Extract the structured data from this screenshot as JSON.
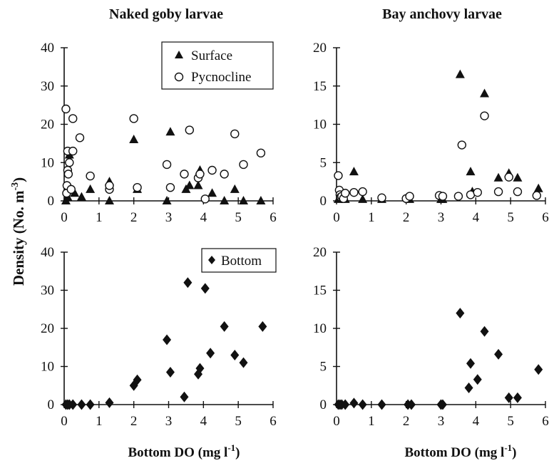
{
  "figure": {
    "ylabel_main": "Density (No. m",
    "ylabel_sup": "-3",
    "ylabel_close": ")"
  },
  "chart_data": [
    {
      "type": "scatter",
      "title": "Naked goby larvae",
      "xlabel": "",
      "xlim": [
        0,
        6
      ],
      "ylim": [
        0,
        40
      ],
      "xticks": [
        "0",
        "1",
        "2",
        "3",
        "4",
        "5",
        "6"
      ],
      "yticks": [
        "0",
        "10",
        "20",
        "30",
        "40"
      ],
      "legend": "top-right",
      "series": [
        {
          "name": "Surface",
          "marker": "triangle",
          "x": [
            0.05,
            0.1,
            0.15,
            0.2,
            0.3,
            0.5,
            0.75,
            1.3,
            1.3,
            2.0,
            2.1,
            2.95,
            3.05,
            3.5,
            3.6,
            3.85,
            3.9,
            4.25,
            4.6,
            4.9,
            5.15,
            5.65
          ],
          "y": [
            0,
            1,
            12,
            3,
            2,
            1,
            3,
            5,
            0,
            16,
            3,
            0,
            18,
            3,
            4,
            4,
            8,
            2,
            0,
            3,
            0,
            0
          ]
        },
        {
          "name": "Pycnocline",
          "marker": "circle",
          "x": [
            0.05,
            0.07,
            0.08,
            0.1,
            0.1,
            0.12,
            0.15,
            0.2,
            0.25,
            0.25,
            0.45,
            0.75,
            1.3,
            1.3,
            2.0,
            2.1,
            2.95,
            3.05,
            3.45,
            3.6,
            3.85,
            3.9,
            4.05,
            4.25,
            4.6,
            4.9,
            5.15,
            5.65
          ],
          "y": [
            24,
            2,
            4,
            13,
            8,
            7,
            10,
            3,
            13,
            21.5,
            16.5,
            6.5,
            3,
            4,
            21.5,
            3.5,
            9.5,
            3.5,
            7,
            18.5,
            6,
            7,
            0.5,
            8,
            7,
            17.5,
            9.5,
            12.5
          ]
        }
      ]
    },
    {
      "type": "scatter",
      "title": "Bay anchovy larvae",
      "xlabel": "",
      "xlim": [
        0,
        6
      ],
      "ylim": [
        0,
        20
      ],
      "xticks": [
        "0",
        "1",
        "2",
        "3",
        "4",
        "5",
        "6"
      ],
      "yticks": [
        "0",
        "5",
        "10",
        "15",
        "20"
      ],
      "series": [
        {
          "name": "Surface",
          "marker": "triangle",
          "x": [
            0.05,
            0.1,
            0.15,
            0.25,
            0.5,
            0.75,
            1.3,
            2.1,
            3.0,
            3.05,
            3.55,
            3.85,
            3.9,
            4.25,
            4.65,
            4.95,
            5.2,
            5.8
          ],
          "y": [
            0.2,
            0.4,
            0.3,
            0.2,
            3.8,
            0.2,
            0.2,
            0.2,
            0.2,
            0.2,
            16.5,
            3.8,
            1.2,
            14,
            3,
            3.6,
            3,
            1.6
          ]
        },
        {
          "name": "Pycnocline",
          "marker": "circle",
          "x": [
            0.05,
            0.08,
            0.1,
            0.12,
            0.15,
            0.2,
            0.25,
            0.5,
            0.75,
            1.3,
            2.0,
            2.1,
            2.95,
            3.05,
            3.5,
            3.6,
            3.85,
            4.05,
            4.25,
            4.65,
            4.95,
            5.2,
            5.75
          ],
          "y": [
            3.3,
            1.4,
            0.8,
            0.5,
            0.6,
            0.3,
            1,
            1.1,
            1.2,
            0.4,
            0.3,
            0.6,
            0.7,
            0.6,
            0.6,
            7.3,
            0.8,
            1.1,
            11.1,
            1.2,
            3.1,
            1.2,
            0.7
          ]
        }
      ]
    },
    {
      "type": "scatter",
      "title": "",
      "xlabel": "Bottom DO (mg l",
      "xlabel_sup": "-1",
      "xlabel_close": ")",
      "xlim": [
        0,
        6
      ],
      "ylim": [
        0,
        40
      ],
      "xticks": [
        "0",
        "1",
        "2",
        "3",
        "4",
        "5",
        "6"
      ],
      "yticks": [
        "0",
        "10",
        "20",
        "30",
        "40"
      ],
      "legend": "top-right",
      "series": [
        {
          "name": "Bottom",
          "marker": "diamond",
          "x": [
            0.05,
            0.1,
            0.15,
            0.25,
            0.5,
            0.75,
            1.3,
            2.0,
            2.1,
            2.95,
            3.05,
            3.45,
            3.55,
            3.85,
            3.9,
            4.05,
            4.2,
            4.6,
            4.9,
            5.15,
            5.7
          ],
          "y": [
            0,
            0,
            0,
            0,
            0,
            0,
            0.5,
            5,
            6.5,
            17,
            8.5,
            2,
            32,
            8,
            9.5,
            30.5,
            13.5,
            20.5,
            13,
            11,
            20.5
          ]
        }
      ]
    },
    {
      "type": "scatter",
      "title": "",
      "xlabel": "Bottom DO (mg l",
      "xlabel_sup": "-1",
      "xlabel_close": ")",
      "xlim": [
        0,
        6
      ],
      "ylim": [
        0,
        20
      ],
      "xticks": [
        "0",
        "1",
        "2",
        "3",
        "4",
        "5",
        "6"
      ],
      "yticks": [
        "0",
        "5",
        "10",
        "15",
        "20"
      ],
      "series": [
        {
          "name": "Bottom",
          "marker": "diamond",
          "x": [
            0.05,
            0.1,
            0.15,
            0.25,
            0.5,
            0.75,
            1.3,
            2.05,
            2.15,
            3.0,
            3.05,
            3.55,
            3.8,
            3.85,
            4.05,
            4.25,
            4.65,
            4.95,
            5.2,
            5.8
          ],
          "y": [
            0,
            0,
            0,
            0,
            0.2,
            0,
            0,
            0,
            0,
            0,
            0,
            12,
            2.2,
            5.4,
            3.3,
            9.6,
            6.6,
            0.9,
            0.9,
            4.6
          ]
        }
      ]
    }
  ]
}
